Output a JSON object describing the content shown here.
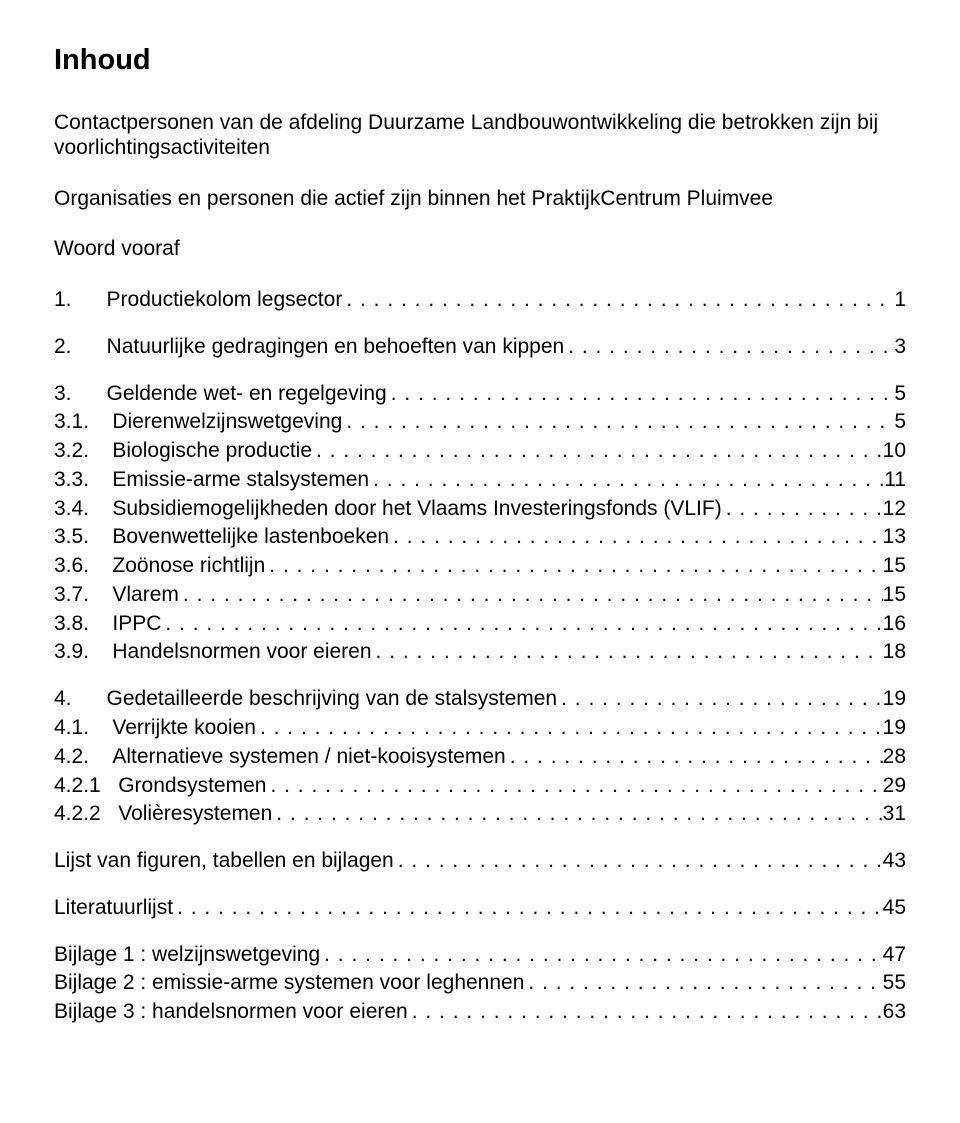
{
  "title": "Inhoud",
  "intro_paragraphs": [
    "Contactpersonen van de afdeling Duurzame Landbouwontwikkeling die betrokken zijn bij voorlichtingsactiviteiten",
    "Organisaties en personen die actief zijn binnen het PraktijkCentrum Pluimvee",
    "Woord vooraf"
  ],
  "groups": [
    {
      "entries": [
        {
          "num": "1.",
          "num_pad": 8,
          "label": "Productiekolom legsector",
          "page": "1"
        }
      ]
    },
    {
      "entries": [
        {
          "num": "2.",
          "num_pad": 8,
          "label": "Natuurlijke gedragingen en behoeften van kippen",
          "page": "3"
        }
      ]
    },
    {
      "entries": [
        {
          "num": "3.",
          "num_pad": 8,
          "label": "Geldende wet- en regelgeving",
          "page": "5"
        },
        {
          "num": "3.1.",
          "num_pad": 8,
          "label": "Dierenwelzijnswetgeving",
          "page": "5"
        },
        {
          "num": "3.2.",
          "num_pad": 8,
          "label": "Biologische productie",
          "page": "10"
        },
        {
          "num": "3.3.",
          "num_pad": 8,
          "label": "Emissie-arme stalsystemen",
          "page": "11"
        },
        {
          "num": "3.4.",
          "num_pad": 8,
          "label": "Subsidiemogelijkheden door het Vlaams Investeringsfonds (VLIF)",
          "page": "12"
        },
        {
          "num": "3.5.",
          "num_pad": 8,
          "label": "Bovenwettelijke lastenboeken",
          "page": "13"
        },
        {
          "num": "3.6.",
          "num_pad": 8,
          "label": "Zoönose richtlijn",
          "page": "15"
        },
        {
          "num": "3.7.",
          "num_pad": 8,
          "label": "Vlarem",
          "page": "15"
        },
        {
          "num": "3.8.",
          "num_pad": 8,
          "label": "IPPC",
          "page": "16"
        },
        {
          "num": "3.9.",
          "num_pad": 8,
          "label": "Handelsnormen voor eieren",
          "page": "18"
        }
      ]
    },
    {
      "entries": [
        {
          "num": "4.",
          "num_pad": 8,
          "label": "Gedetailleerde beschrijving van de stalsystemen",
          "page": "19"
        },
        {
          "num": "4.1.",
          "num_pad": 8,
          "label": "Verrijkte kooien",
          "page": "19"
        },
        {
          "num": "4.2.",
          "num_pad": 8,
          "label": "Alternatieve systemen / niet-kooisystemen",
          "page": "28"
        },
        {
          "num": "4.2.1",
          "num_pad": 8,
          "label": "Grondsystemen",
          "page": "29"
        },
        {
          "num": "4.2.2",
          "num_pad": 8,
          "label": "Volièresystemen",
          "page": "31"
        }
      ]
    },
    {
      "entries": [
        {
          "num": "",
          "num_pad": 0,
          "label": "Lijst van figuren, tabellen en bijlagen",
          "page": "43"
        }
      ]
    },
    {
      "entries": [
        {
          "num": "",
          "num_pad": 0,
          "label": "Literatuurlijst",
          "page": "45"
        }
      ]
    },
    {
      "entries": [
        {
          "num": "",
          "num_pad": 0,
          "label": "Bijlage 1 : welzijnswetgeving",
          "page": "47"
        },
        {
          "num": "",
          "num_pad": 0,
          "label": "Bijlage 2 : emissie-arme systemen voor leghennen",
          "page": "55"
        },
        {
          "num": "",
          "num_pad": 0,
          "label": "Bijlage 3 : handelsnormen voor eieren",
          "page": "63"
        }
      ]
    }
  ]
}
